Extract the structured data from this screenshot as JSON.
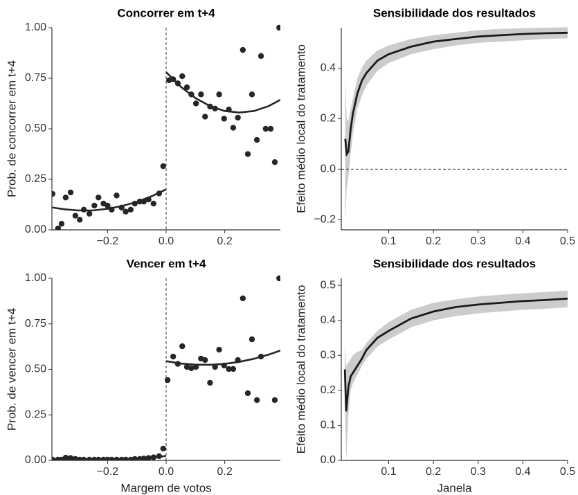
{
  "chart_data": [
    {
      "type": "scatter",
      "title": "Concorrer em t+4",
      "ylabel": "Prob. de concorrer em t+4",
      "xlim": [
        -0.39,
        0.39
      ],
      "ylim": [
        0,
        1
      ],
      "xticks": [
        {
          "value": -0.2,
          "label": "−0.2"
        },
        {
          "value": 0,
          "label": "0.0"
        },
        {
          "value": 0.2,
          "label": "0.2"
        }
      ],
      "yticks": [
        {
          "value": 0,
          "label": "0.00"
        },
        0.25,
        {
          "value": 0.5,
          "label": "0.50"
        },
        0.75,
        {
          "value": 1,
          "label": "1.00"
        }
      ],
      "vline": 0,
      "color": "#262626",
      "points": {
        "x": [
          -0.388,
          -0.369,
          -0.357,
          -0.343,
          -0.326,
          -0.31,
          -0.295,
          -0.281,
          -0.262,
          -0.245,
          -0.231,
          -0.214,
          -0.2,
          -0.186,
          -0.169,
          -0.152,
          -0.138,
          -0.121,
          -0.107,
          -0.09,
          -0.076,
          -0.06,
          -0.043,
          -0.024,
          -0.01,
          0.01,
          0.024,
          0.04,
          0.055,
          0.071,
          0.086,
          0.102,
          0.119,
          0.133,
          0.15,
          0.167,
          0.181,
          0.198,
          0.214,
          0.229,
          0.245,
          0.262,
          0.279,
          0.293,
          0.31,
          0.324,
          0.34,
          0.357,
          0.371,
          0.386
        ],
        "values": [
          0.178,
          0.007,
          0.03,
          0.16,
          0.185,
          0.07,
          0.05,
          0.1,
          0.08,
          0.12,
          0.16,
          0.13,
          0.12,
          0.1,
          0.17,
          0.11,
          0.09,
          0.1,
          0.13,
          0.14,
          0.14,
          0.15,
          0.13,
          0.18,
          0.315,
          0.74,
          0.745,
          0.725,
          0.76,
          0.705,
          0.67,
          0.625,
          0.67,
          0.56,
          0.61,
          0.6,
          0.67,
          0.55,
          0.595,
          0.505,
          0.555,
          0.89,
          0.375,
          0.67,
          0.445,
          0.86,
          0.5,
          0.5,
          0.335,
          1.0
        ]
      },
      "fits": [
        {
          "x": [
            -0.39,
            -0.35,
            -0.3,
            -0.25,
            -0.2,
            -0.15,
            -0.1,
            -0.05,
            0
          ],
          "values": [
            0.111,
            0.102,
            0.096,
            0.096,
            0.104,
            0.118,
            0.138,
            0.166,
            0.2
          ]
        },
        {
          "x": [
            0,
            0.05,
            0.1,
            0.15,
            0.2,
            0.25,
            0.3,
            0.35,
            0.39
          ],
          "values": [
            0.78,
            0.708,
            0.652,
            0.612,
            0.588,
            0.58,
            0.588,
            0.612,
            0.643
          ]
        }
      ]
    },
    {
      "type": "line",
      "title": "Sensibilidade dos resultados",
      "ylabel": "Efeito médio local do tratamento",
      "xlim": [
        -0.006,
        0.5
      ],
      "ylim": [
        -0.24,
        0.56
      ],
      "xticks": [
        0.1,
        0.2,
        0.3,
        0.4,
        0.5
      ],
      "yticks": [
        {
          "value": -0.2,
          "label": "−0.2"
        },
        {
          "value": 0,
          "label": "0.0"
        },
        0.2,
        0.4
      ],
      "hline": 0,
      "color": "#1a1a1a",
      "band_color": "#cccccc",
      "x": [
        0.003,
        0.006,
        0.01,
        0.015,
        0.02,
        0.03,
        0.04,
        0.05,
        0.075,
        0.1,
        0.15,
        0.2,
        0.25,
        0.3,
        0.35,
        0.4,
        0.45,
        0.5
      ],
      "values": [
        0.12,
        0.06,
        0.07,
        0.16,
        0.22,
        0.3,
        0.35,
        0.38,
        0.43,
        0.455,
        0.485,
        0.505,
        0.515,
        0.525,
        0.53,
        0.535,
        0.538,
        0.54
      ],
      "lower": [
        -0.2,
        -0.08,
        -0.03,
        0.06,
        0.14,
        0.24,
        0.29,
        0.33,
        0.39,
        0.42,
        0.455,
        0.475,
        0.49,
        0.5,
        0.505,
        0.51,
        0.515,
        0.518
      ],
      "upper": [
        0.35,
        0.2,
        0.19,
        0.24,
        0.28,
        0.36,
        0.4,
        0.43,
        0.47,
        0.49,
        0.515,
        0.53,
        0.54,
        0.55,
        0.555,
        0.558,
        0.56,
        0.562
      ]
    },
    {
      "type": "scatter",
      "title": "Vencer em t+4",
      "ylabel": "Prob. de vencer em t+4",
      "xlabel": "Margem de votos",
      "xlim": [
        -0.39,
        0.39
      ],
      "ylim": [
        0,
        1
      ],
      "xticks": [
        {
          "value": -0.2,
          "label": "−0.2"
        },
        {
          "value": 0,
          "label": "0.0"
        },
        {
          "value": 0.2,
          "label": "0.2"
        }
      ],
      "yticks": [
        {
          "value": 0,
          "label": "0.00"
        },
        0.25,
        {
          "value": 0.5,
          "label": "0.50"
        },
        0.75,
        {
          "value": 1,
          "label": "1.00"
        }
      ],
      "vline": 0,
      "color": "#262626",
      "points": {
        "x": [
          -0.388,
          -0.37,
          -0.357,
          -0.343,
          -0.326,
          -0.31,
          -0.295,
          -0.281,
          -0.262,
          -0.245,
          -0.231,
          -0.214,
          -0.2,
          -0.186,
          -0.169,
          -0.152,
          -0.138,
          -0.121,
          -0.107,
          -0.09,
          -0.076,
          -0.06,
          -0.043,
          -0.024,
          -0.01,
          0.005,
          0.024,
          0.04,
          0.055,
          0.071,
          0.086,
          0.102,
          0.119,
          0.133,
          0.15,
          0.167,
          0.181,
          0.198,
          0.214,
          0.229,
          0.245,
          0.262,
          0.279,
          0.293,
          0.31,
          0.324,
          0.371,
          0.386
        ],
        "values": [
          0.004,
          0.004,
          0.004,
          0.015,
          0.013,
          0.008,
          0.004,
          0.004,
          0.004,
          0.004,
          0.004,
          0.004,
          0.004,
          0.004,
          0.004,
          0.004,
          0.004,
          0.004,
          0.008,
          0.008,
          0.01,
          0.013,
          0.017,
          0.023,
          0.065,
          0.441,
          0.57,
          0.53,
          0.627,
          0.513,
          0.506,
          0.513,
          0.559,
          0.551,
          0.426,
          0.513,
          0.608,
          0.521,
          0.502,
          0.502,
          0.551,
          0.89,
          0.369,
          0.665,
          0.331,
          0.57,
          0.331,
          1.0
        ]
      },
      "fits": [
        {
          "x": [
            -0.39,
            -0.2,
            -0.1,
            -0.05,
            0
          ],
          "values": [
            0.004,
            0.003,
            0.006,
            0.012,
            0.025
          ]
        },
        {
          "x": [
            0,
            0.05,
            0.1,
            0.15,
            0.2,
            0.25,
            0.3,
            0.35,
            0.39
          ],
          "values": [
            0.545,
            0.532,
            0.526,
            0.525,
            0.53,
            0.541,
            0.558,
            0.581,
            0.603
          ]
        }
      ]
    },
    {
      "type": "line",
      "title": "Sensibilidade dos resultados",
      "ylabel": "Efeito médio local do tratamento",
      "xlabel": "Janela",
      "xlim": [
        -0.006,
        0.5
      ],
      "ylim": [
        0,
        0.52
      ],
      "xticks": [
        0.1,
        0.2,
        0.3,
        0.4,
        0.5
      ],
      "yticks": [
        {
          "value": 0,
          "label": "0.0"
        },
        0.1,
        0.2,
        0.3,
        0.4,
        0.5
      ],
      "color": "#1a1a1a",
      "band_color": "#cccccc",
      "x": [
        0.002,
        0.005,
        0.01,
        0.015,
        0.02,
        0.03,
        0.04,
        0.05,
        0.075,
        0.1,
        0.15,
        0.2,
        0.25,
        0.3,
        0.35,
        0.4,
        0.45,
        0.5
      ],
      "values": [
        0.26,
        0.14,
        0.21,
        0.24,
        0.25,
        0.27,
        0.29,
        0.315,
        0.35,
        0.37,
        0.405,
        0.425,
        0.438,
        0.445,
        0.45,
        0.455,
        0.458,
        0.462
      ],
      "lower": [
        0.17,
        0.0,
        0.13,
        0.2,
        0.22,
        0.245,
        0.27,
        0.29,
        0.325,
        0.345,
        0.38,
        0.4,
        0.412,
        0.42,
        0.425,
        0.43,
        0.433,
        0.437
      ],
      "upper": [
        0.33,
        0.27,
        0.28,
        0.29,
        0.3,
        0.31,
        0.315,
        0.335,
        0.37,
        0.395,
        0.43,
        0.45,
        0.46,
        0.468,
        0.473,
        0.477,
        0.481,
        0.485
      ]
    }
  ]
}
